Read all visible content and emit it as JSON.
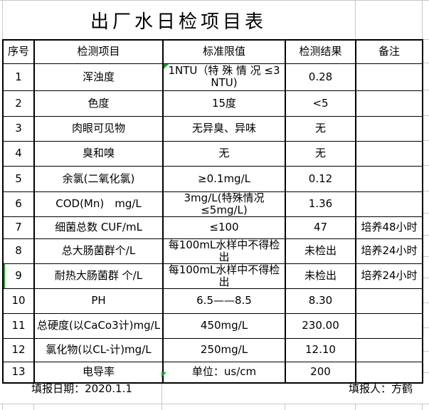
{
  "sheet": {
    "title": "出厂水日检项目表",
    "columns": [
      "序号",
      "检测项目",
      "标准限值",
      "检测结果",
      "备注"
    ],
    "rows": [
      {
        "no": "1",
        "item": "浑浊度",
        "limit": "1NTU（特 殊 情 况 ≤3NTU)",
        "result": "0.28",
        "note": ""
      },
      {
        "no": "2",
        "item": "色度",
        "limit": "15度",
        "result": "<5",
        "note": ""
      },
      {
        "no": "3",
        "item": "肉眼可见物",
        "limit": "无异臭、异味",
        "result": "无",
        "note": ""
      },
      {
        "no": "4",
        "item": "臭和嗅",
        "limit": "无",
        "result": "无",
        "note": ""
      },
      {
        "no": "5",
        "item": "余氯(二氧化氯)",
        "limit": "≥0.1mg/L",
        "result": "0.12",
        "note": ""
      },
      {
        "no": "6",
        "item": "COD(Mn)　mg/L",
        "limit": "3mg/L(特殊情况≤5mg/L)",
        "result": "1.36",
        "note": ""
      },
      {
        "no": "7",
        "item": "细菌总数 CUF/mL",
        "limit": "≤100",
        "result": "47",
        "note": "培养48小时"
      },
      {
        "no": "8",
        "item": "总大肠菌群个/L",
        "limit": "每100mL水样中不得检出",
        "result": "未检出",
        "note": "培养24小时"
      },
      {
        "no": "9",
        "item": "耐热大肠菌群 个/L",
        "limit": "每100mL水样中不得检出",
        "result": "未检出",
        "note": "培养24小时"
      },
      {
        "no": "10",
        "item": "PH",
        "limit": "6.5——8.5",
        "result": "8.30",
        "note": ""
      },
      {
        "no": "11",
        "item": "总硬度(以CaCo3计)mg/L",
        "limit": "450mg/L",
        "result": "230.00",
        "note": ""
      },
      {
        "no": "12",
        "item": "氯化物(以CL-计)mg/L",
        "limit": "250mg/L",
        "result": "12.10",
        "note": ""
      },
      {
        "no": "13",
        "item": "电导率",
        "limit": "单位：us/cm",
        "result": "200",
        "note": ""
      }
    ],
    "footer": {
      "date": "填报日期：2020.1.1",
      "reporter": "填报人：方鹤"
    }
  },
  "colors": {
    "background": "#ffffff",
    "text": "#000000",
    "table_border": "#000000",
    "gridline": "#c8c8c8",
    "marker_green": "#16a022"
  }
}
